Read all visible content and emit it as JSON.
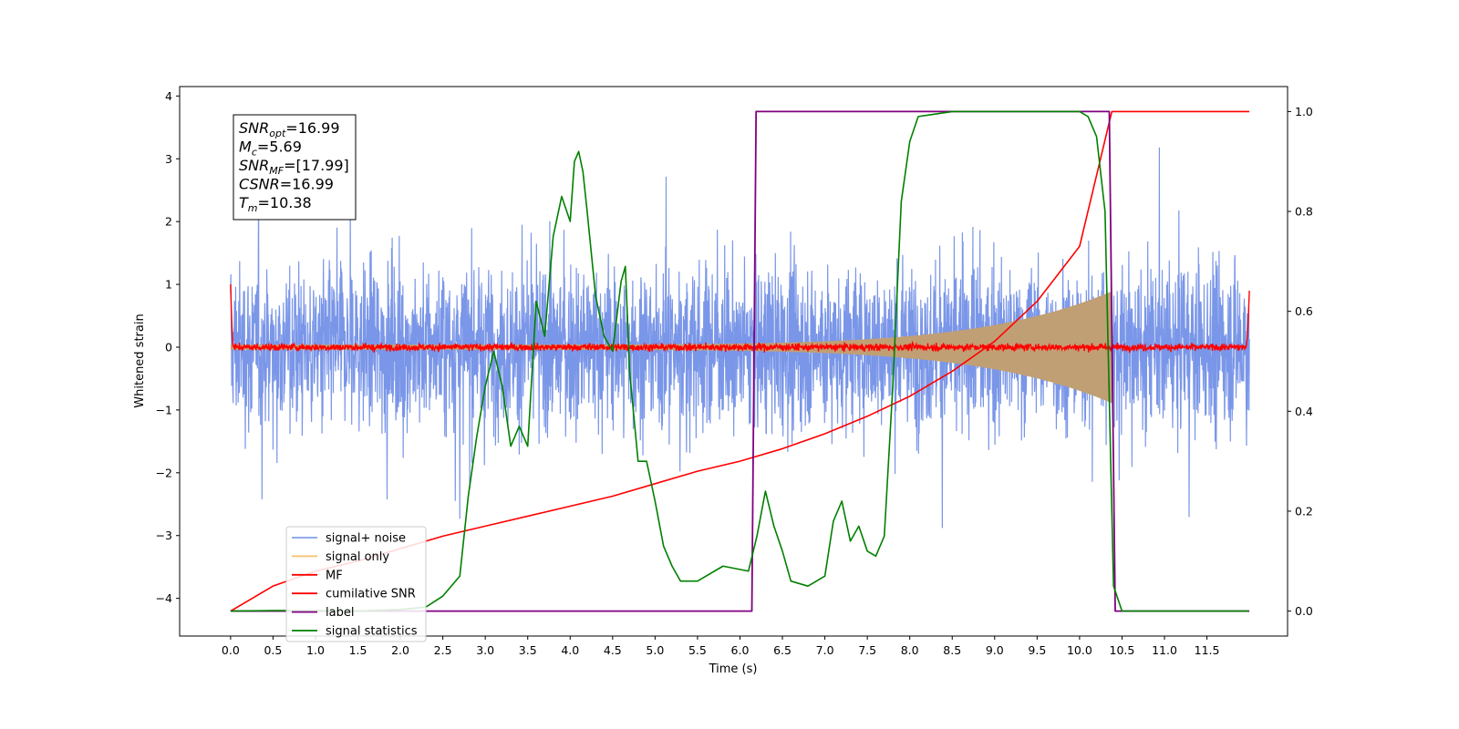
{
  "chart_data": {
    "type": "line",
    "xlabel": "Time (s)",
    "ylabel": "Whitened strain",
    "xlim": [
      -0.6,
      12.45
    ],
    "ylim_left": [
      -4.6,
      4.15
    ],
    "ylim_right": [
      -0.05,
      1.05
    ],
    "x_ticks": [
      0.0,
      0.5,
      1.0,
      1.5,
      2.0,
      2.5,
      3.0,
      3.5,
      4.0,
      4.5,
      5.0,
      5.5,
      6.0,
      6.5,
      7.0,
      7.5,
      8.0,
      8.5,
      9.0,
      9.5,
      10.0,
      10.5,
      11.0,
      11.5
    ],
    "x_tick_labels": [
      "0.0",
      "0.5",
      "1.0",
      "1.5",
      "2.0",
      "2.5",
      "3.0",
      "3.5",
      "4.0",
      "4.5",
      "5.0",
      "5.5",
      "6.0",
      "6.5",
      "7.0",
      "7.5",
      "8.0",
      "8.5",
      "9.0",
      "9.5",
      "10.0",
      "10.5",
      "11.0",
      "11.5"
    ],
    "y_ticks_left": [
      4,
      3,
      2,
      1,
      0,
      -1,
      -2,
      -3,
      -4
    ],
    "y_tick_labels_left": [
      "4",
      "3",
      "2",
      "1",
      "0",
      "−1",
      "−2",
      "−3",
      "−4"
    ],
    "y_ticks_right": [
      1.0,
      0.8,
      0.6,
      0.4,
      0.2,
      0.0
    ],
    "y_tick_labels_right": [
      "1.0",
      "0.8",
      "0.6",
      "0.4",
      "0.2",
      "0.0"
    ],
    "legend_placement": "lower-left",
    "series": [
      {
        "name": "signal+ noise",
        "axis": "left",
        "color": "#6f8de6",
        "description": "whitened strain, dense noise roughly between -2.5 and 2.5 with spikes to about ±4, from t=0 to t=12"
      },
      {
        "name": "signal only",
        "axis": "left",
        "color": "#f5c26b",
        "description": "chirp signal with envelope growing from about ±0.05 at t=6 to about ±0.9 at t=10.35, then ending"
      },
      {
        "name": "MF",
        "axis": "left",
        "color": "#ff0000",
        "description": "matched filter output, noise around 0 with amplitude about 0.1; edge values about 1.0 at t=0 and 0.9 at t=12"
      },
      {
        "name": "cumilative SNR",
        "axis": "right",
        "color": "#ff0000",
        "x": [
          0.0,
          0.5,
          1.0,
          1.5,
          2.0,
          2.5,
          3.0,
          3.5,
          4.0,
          4.5,
          5.0,
          5.5,
          6.0,
          6.5,
          7.0,
          7.5,
          8.0,
          8.5,
          9.0,
          9.5,
          10.0,
          10.38,
          12.0
        ],
        "values": [
          0.0,
          0.05,
          0.08,
          0.1,
          0.125,
          0.15,
          0.17,
          0.19,
          0.21,
          0.23,
          0.255,
          0.28,
          0.3,
          0.325,
          0.355,
          0.39,
          0.43,
          0.48,
          0.54,
          0.62,
          0.73,
          1.0,
          1.0
        ]
      },
      {
        "name": "label",
        "axis": "right",
        "color": "#800080",
        "x": [
          0.0,
          6.14,
          6.19,
          10.35,
          10.42,
          12.0
        ],
        "values": [
          0.0,
          0.0,
          1.0,
          1.0,
          0.0,
          0.0
        ]
      },
      {
        "name": "signal statistics",
        "axis": "right",
        "color": "#008000",
        "x": [
          0.0,
          0.5,
          1.0,
          1.5,
          2.0,
          2.3,
          2.5,
          2.7,
          2.8,
          2.9,
          3.0,
          3.1,
          3.2,
          3.3,
          3.4,
          3.5,
          3.6,
          3.7,
          3.8,
          3.9,
          4.0,
          4.05,
          4.1,
          4.15,
          4.2,
          4.3,
          4.4,
          4.5,
          4.6,
          4.65,
          4.7,
          4.8,
          4.9,
          5.0,
          5.1,
          5.2,
          5.3,
          5.5,
          5.8,
          6.1,
          6.2,
          6.3,
          6.4,
          6.5,
          6.6,
          6.8,
          7.0,
          7.1,
          7.2,
          7.3,
          7.4,
          7.5,
          7.6,
          7.7,
          7.8,
          7.9,
          8.0,
          8.1,
          8.5,
          9.0,
          9.5,
          10.0,
          10.1,
          10.2,
          10.3,
          10.4,
          10.5,
          11.0,
          11.5,
          11.99
        ],
        "values": [
          0.0,
          0.001,
          0.001,
          0.0,
          0.003,
          0.008,
          0.03,
          0.07,
          0.23,
          0.35,
          0.45,
          0.52,
          0.45,
          0.33,
          0.37,
          0.33,
          0.62,
          0.55,
          0.75,
          0.83,
          0.78,
          0.9,
          0.92,
          0.88,
          0.8,
          0.63,
          0.55,
          0.52,
          0.66,
          0.69,
          0.48,
          0.3,
          0.3,
          0.22,
          0.13,
          0.09,
          0.06,
          0.06,
          0.09,
          0.08,
          0.15,
          0.24,
          0.17,
          0.12,
          0.06,
          0.05,
          0.07,
          0.18,
          0.22,
          0.14,
          0.17,
          0.12,
          0.11,
          0.15,
          0.45,
          0.82,
          0.94,
          0.99,
          1.0,
          1.0,
          1.0,
          1.0,
          0.99,
          0.95,
          0.8,
          0.05,
          0.0,
          0.0,
          0.0,
          0.0
        ]
      }
    ],
    "stats_box": [
      {
        "main": "SNR",
        "sub": "opt",
        "value": "=16.99"
      },
      {
        "main": "M",
        "sub": "c",
        "value": "=5.69"
      },
      {
        "main": "SNR",
        "sub": "MF",
        "value": "=[17.99]"
      },
      {
        "main": "CSNR",
        "sub": "",
        "value": "=16.99"
      },
      {
        "main": "T",
        "sub": "m",
        "value": "=10.38"
      }
    ]
  }
}
